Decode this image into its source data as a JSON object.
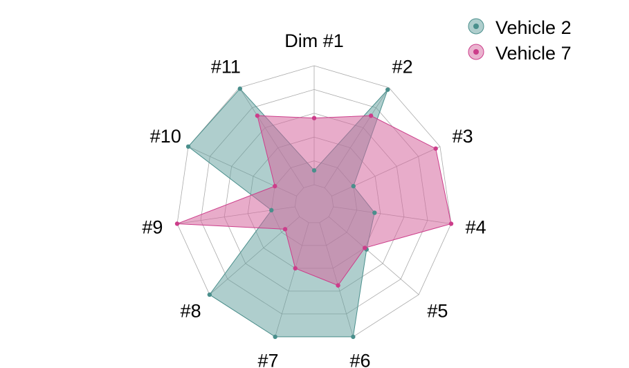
{
  "chart_data": {
    "type": "radar",
    "axes": [
      "Dim #1",
      "#2",
      "#3",
      "#4",
      "#5",
      "#6",
      "#7",
      "#8",
      "#9",
      "#10",
      "#11"
    ],
    "range": [
      0,
      1
    ],
    "grid_levels": 5,
    "legend_position": "top-right",
    "series": [
      {
        "name": "Vehicle 2",
        "color": "#4a8f8c",
        "fill": "#5f9e9b",
        "values": [
          0.12,
          0.98,
          0.2,
          0.35,
          0.42,
          1.0,
          1.0,
          1.0,
          0.2,
          1.0,
          0.99
        ]
      },
      {
        "name": "Vehicle 7",
        "color": "#cc3d8a",
        "fill": "#d6679f",
        "values": [
          0.56,
          0.72,
          0.96,
          1.0,
          0.4,
          0.55,
          0.4,
          0.16,
          1.0,
          0.2,
          0.72
        ]
      }
    ]
  }
}
